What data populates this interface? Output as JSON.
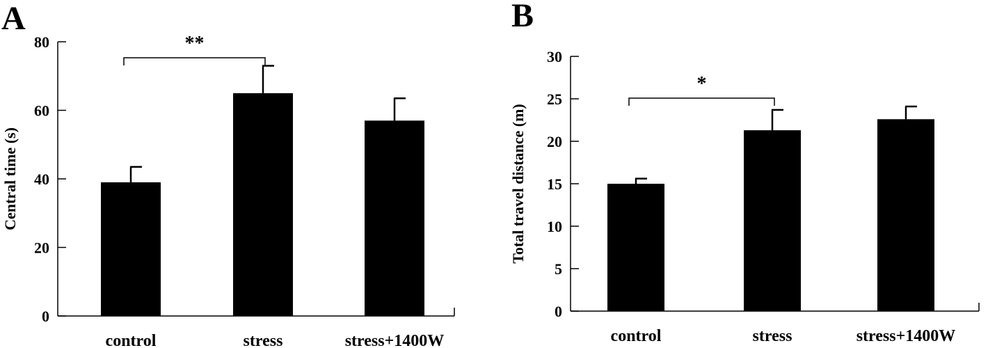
{
  "chart_data": [
    {
      "type": "bar",
      "panel": "A",
      "categories": [
        "control",
        "stress",
        "stress+1400W"
      ],
      "values": [
        39,
        65,
        57
      ],
      "errors": [
        4.5,
        8,
        6.5
      ],
      "ylabel": "Central time (s)",
      "ylim": [
        0,
        80
      ],
      "yticks": [
        0,
        20,
        40,
        60,
        80
      ],
      "grid": false,
      "annotations": [
        {
          "from": 0,
          "to": 1,
          "text": "**"
        }
      ],
      "colors": {
        "bars": "#000000",
        "axes": "#000000"
      }
    },
    {
      "type": "bar",
      "panel": "B",
      "categories": [
        "control",
        "stress",
        "stress+1400W"
      ],
      "values": [
        15,
        21.3,
        22.6
      ],
      "errors": [
        0.6,
        2.4,
        1.5
      ],
      "ylabel": "Total travel distance  (m)",
      "ylim": [
        0,
        30
      ],
      "yticks": [
        0,
        5,
        10,
        15,
        20,
        25,
        30
      ],
      "grid": false,
      "annotations": [
        {
          "from": 0,
          "to": 1,
          "text": "*"
        }
      ],
      "colors": {
        "bars": "#000000",
        "axes": "#000000"
      }
    }
  ]
}
